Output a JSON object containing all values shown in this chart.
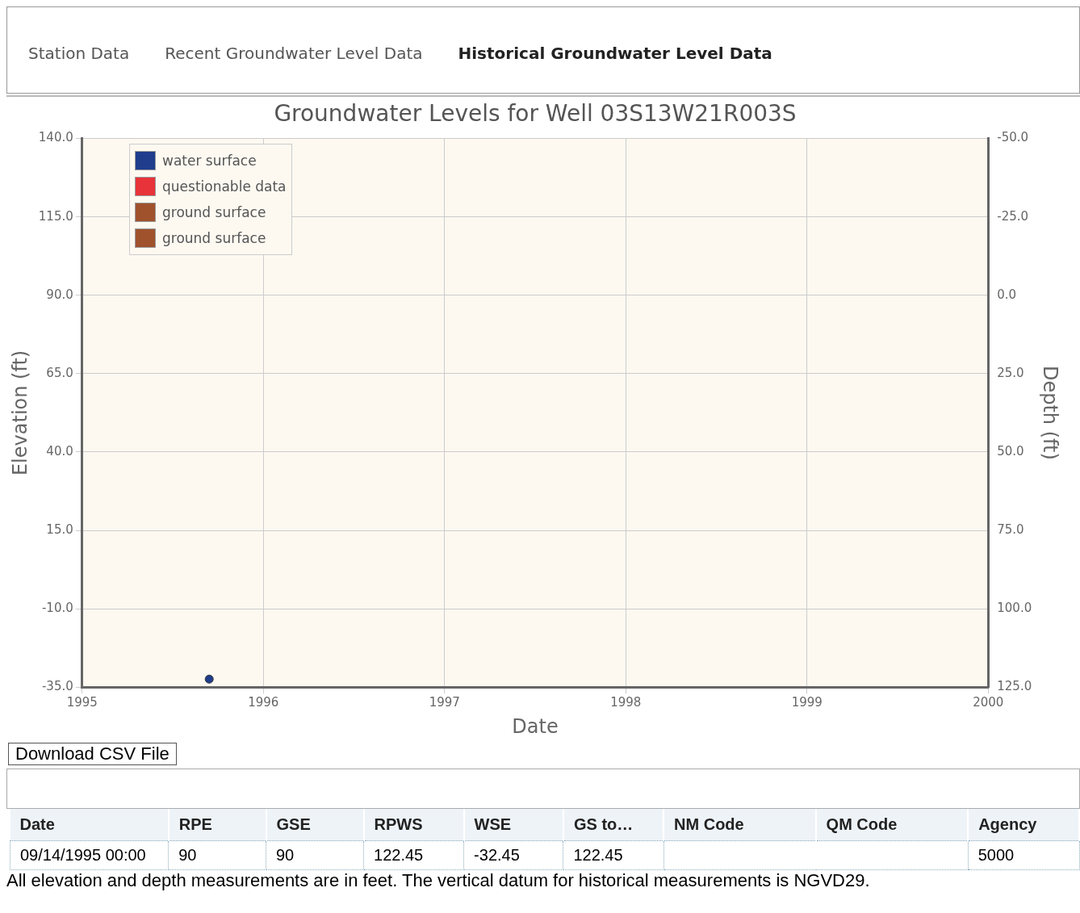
{
  "chart_data": {
    "type": "scatter",
    "title": "Groundwater Levels for Well 03S13W21R003S",
    "xlabel": "Date",
    "ylabel": "Elevation (ft)",
    "y2label": "Depth (ft)",
    "xlim": [
      "1995",
      "2000"
    ],
    "xticks": [
      "1995",
      "1996",
      "1997",
      "1998",
      "1999",
      "2000"
    ],
    "ylim": [
      -35,
      140
    ],
    "yticks": [
      {
        "value": -35,
        "label": "-35.0"
      },
      {
        "value": -10,
        "label": "-10.0"
      },
      {
        "value": 15,
        "label": "15.0"
      },
      {
        "value": 40,
        "label": "40.0"
      },
      {
        "value": 65,
        "label": "65.0"
      },
      {
        "value": 90,
        "label": "90.0"
      },
      {
        "value": 115,
        "label": "115.0"
      },
      {
        "value": 140,
        "label": "140.0"
      }
    ],
    "y2lim": [
      125,
      -50
    ],
    "y2ticks": [
      {
        "value": 125,
        "label": "125.0"
      },
      {
        "value": 100,
        "label": "100.0"
      },
      {
        "value": 75,
        "label": "75.0"
      },
      {
        "value": 50,
        "label": "50.0"
      },
      {
        "value": 25,
        "label": "25.0"
      },
      {
        "value": 0,
        "label": "0.0"
      },
      {
        "value": -25,
        "label": "-25.0"
      },
      {
        "value": -50,
        "label": "-50.0"
      }
    ],
    "series": [
      {
        "name": "water surface",
        "color": "#1f3d8c",
        "x": [
          "1995-09-14"
        ],
        "values": [
          -32.45
        ]
      },
      {
        "name": "questionable data",
        "color": "#e8333a"
      },
      {
        "name": "ground surface",
        "color": "#a0522d"
      },
      {
        "name": "ground surface",
        "color": "#a0522d"
      }
    ],
    "grid": true,
    "legend": "top left",
    "marker": "circle",
    "annotations": [
      "Station Data",
      "Recent Groundwater Level Data",
      "Historical Groundwater Level Data",
      "Download CSV File",
      "Date",
      "RPE",
      "GSE",
      "RPWS",
      "WSE",
      "GS to…",
      "NM Code",
      "QM Code",
      "Agency",
      "09/14/1995 00:00",
      "90",
      "90",
      "122.45",
      "-32.45",
      "122.45",
      "5000",
      "All elevation and depth measurements are in feet. The vertical datum for historical measurements is NGVD29."
    ]
  }
}
